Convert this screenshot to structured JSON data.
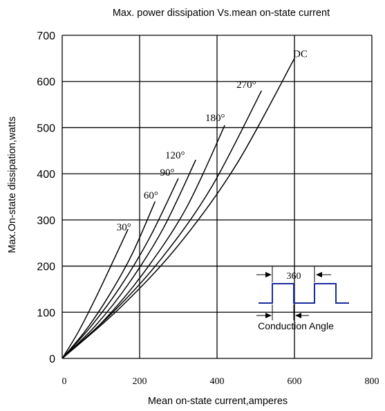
{
  "chart_data": {
    "type": "line",
    "title": "Max. power dissipation Vs.mean on-state current",
    "xlabel": "Mean on-state current,amperes",
    "ylabel": "Max.On-state dissipation,watts",
    "xlim": [
      0,
      800
    ],
    "ylim": [
      0,
      700
    ],
    "x_ticks": [
      "0",
      "200",
      "400",
      "600",
      "800"
    ],
    "y_ticks": [
      "0",
      "100",
      "200",
      "300",
      "400",
      "500",
      "600",
      "700"
    ],
    "grid": true,
    "series": [
      {
        "name": "30°",
        "x": [
          0,
          40,
          80,
          120,
          170
        ],
        "y": [
          0,
          55,
          120,
          190,
          280
        ]
      },
      {
        "name": "60°",
        "x": [
          0,
          60,
          120,
          180,
          240
        ],
        "y": [
          0,
          60,
          135,
          225,
          340
        ]
      },
      {
        "name": "90°",
        "x": [
          0,
          75,
          150,
          225,
          300
        ],
        "y": [
          0,
          70,
          155,
          260,
          390
        ]
      },
      {
        "name": "120°",
        "x": [
          0,
          85,
          170,
          260,
          345
        ],
        "y": [
          0,
          70,
          160,
          280,
          430
        ]
      },
      {
        "name": "180°",
        "x": [
          0,
          105,
          210,
          320,
          420
        ],
        "y": [
          0,
          80,
          185,
          325,
          505
        ]
      },
      {
        "name": "270°",
        "x": [
          0,
          125,
          255,
          385,
          515
        ],
        "y": [
          0,
          95,
          215,
          370,
          580
        ]
      },
      {
        "name": "DC",
        "x": [
          0,
          150,
          300,
          450,
          600
        ],
        "y": [
          0,
          110,
          245,
          420,
          650
        ]
      }
    ],
    "inset": {
      "period_label": "360",
      "angle_label": "Conduction Angle"
    }
  }
}
